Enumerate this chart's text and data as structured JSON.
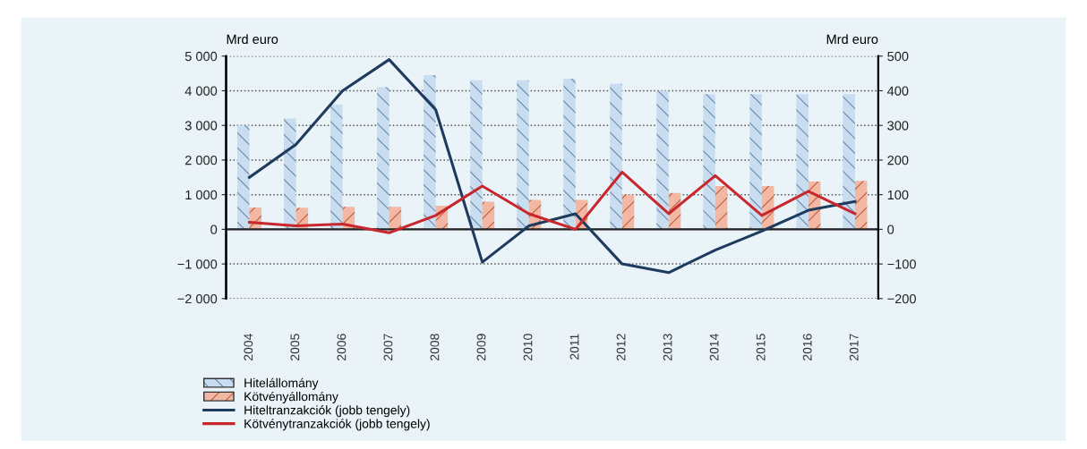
{
  "chart_data": {
    "type": "bar",
    "ylabel": "Mrd euro",
    "y2label": "Mrd euro",
    "categories": [
      "2004",
      "2005",
      "2006",
      "2007",
      "2008",
      "2009",
      "2010",
      "2011",
      "2012",
      "2013",
      "2014",
      "2015",
      "2016",
      "2017"
    ],
    "series": [
      {
        "name": "Hitelállomány",
        "color": "#c9ddf0",
        "values": [
          3000,
          3200,
          3600,
          4100,
          4450,
          4300,
          4300,
          4350,
          4200,
          4000,
          3900,
          3900,
          3900,
          3900
        ]
      },
      {
        "name": "Kötvényállomány",
        "color": "#f2b8a4",
        "values": [
          630,
          620,
          650,
          650,
          680,
          800,
          850,
          850,
          1000,
          1050,
          1250,
          1250,
          1380,
          1400
        ]
      },
      {
        "name": "Hiteltranzakciók (jobb tengely)",
        "type": "line",
        "axis": "y2",
        "color": "#1f3a5f",
        "values": [
          150,
          245,
          400,
          490,
          345,
          -95,
          10,
          45,
          -100,
          -125,
          -60,
          -5,
          55,
          80
        ]
      },
      {
        "name": "Kötvénytranzakciók (jobb tengely)",
        "type": "line",
        "axis": "y2",
        "color": "#c8282d",
        "values": [
          20,
          10,
          15,
          -10,
          40,
          125,
          45,
          0,
          165,
          45,
          155,
          40,
          110,
          45
        ]
      }
    ],
    "ylim": [
      -2000,
      5000
    ],
    "yticks": [
      {
        "value": -2000,
        "label": "−2 000"
      },
      {
        "value": -1000,
        "label": "−1 000"
      },
      0,
      {
        "value": 1000,
        "label": "1 000"
      },
      {
        "value": 2000,
        "label": "2 000"
      },
      {
        "value": 3000,
        "label": "3 000"
      },
      {
        "value": 4000,
        "label": "4 000"
      },
      {
        "value": 5000,
        "label": "5 000"
      }
    ],
    "y2lim": [
      -200,
      500
    ],
    "y2ticks": [
      {
        "value": -200,
        "label": "−200"
      },
      {
        "value": -100,
        "label": "−100"
      },
      0,
      100,
      200,
      300,
      400,
      500
    ],
    "grid": "y",
    "legend": "bottom left",
    "line_style": "solid",
    "marker": "none"
  }
}
